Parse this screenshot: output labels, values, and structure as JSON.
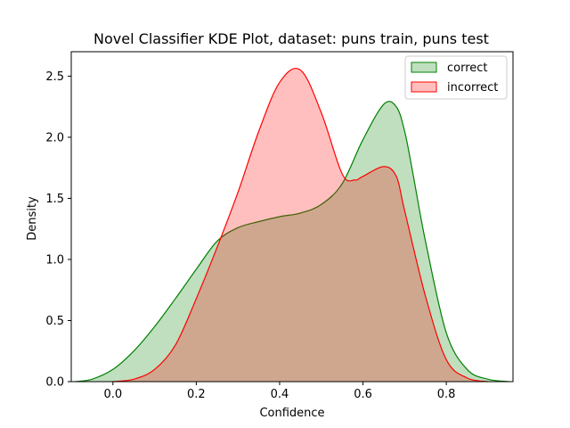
{
  "chart_data": {
    "type": "area",
    "title": "Novel Classifier KDE Plot, dataset: puns train, puns test",
    "xlabel": "Confidence",
    "ylabel": "Density",
    "xlim": [
      -0.1,
      0.96
    ],
    "ylim": [
      0,
      2.7
    ],
    "xticks": [
      0.0,
      0.2,
      0.4,
      0.6,
      0.8
    ],
    "xtick_labels": [
      "0.0",
      "0.2",
      "0.4",
      "0.6",
      "0.8"
    ],
    "yticks": [
      0.0,
      0.5,
      1.0,
      1.5,
      2.0,
      2.5
    ],
    "ytick_labels": [
      "0.0",
      "0.5",
      "1.0",
      "1.5",
      "2.0",
      "2.5"
    ],
    "grid": false,
    "legend_position": "top-right",
    "series": [
      {
        "name": "correct",
        "color": "#008000",
        "fill": "#008000",
        "fill_opacity": 0.25,
        "x": [
          -0.09,
          -0.05,
          0.0,
          0.05,
          0.1,
          0.15,
          0.2,
          0.25,
          0.3,
          0.35,
          0.4,
          0.45,
          0.5,
          0.55,
          0.6,
          0.65,
          0.68,
          0.7,
          0.72,
          0.75,
          0.8,
          0.85,
          0.9,
          0.95
        ],
        "y": [
          0.0,
          0.02,
          0.1,
          0.25,
          0.45,
          0.68,
          0.92,
          1.15,
          1.26,
          1.31,
          1.35,
          1.38,
          1.45,
          1.62,
          1.98,
          2.27,
          2.25,
          2.05,
          1.7,
          1.15,
          0.4,
          0.1,
          0.02,
          0.0
        ]
      },
      {
        "name": "incorrect",
        "color": "#ff0000",
        "fill": "#ff0000",
        "fill_opacity": 0.25,
        "x": [
          0.0,
          0.05,
          0.1,
          0.15,
          0.2,
          0.25,
          0.3,
          0.35,
          0.4,
          0.45,
          0.5,
          0.55,
          0.58,
          0.6,
          0.65,
          0.68,
          0.7,
          0.75,
          0.8,
          0.85,
          0.9
        ],
        "y": [
          0.0,
          0.02,
          0.1,
          0.3,
          0.68,
          1.1,
          1.55,
          2.05,
          2.45,
          2.55,
          2.2,
          1.7,
          1.65,
          1.68,
          1.76,
          1.68,
          1.4,
          0.7,
          0.18,
          0.03,
          0.0
        ]
      }
    ]
  }
}
